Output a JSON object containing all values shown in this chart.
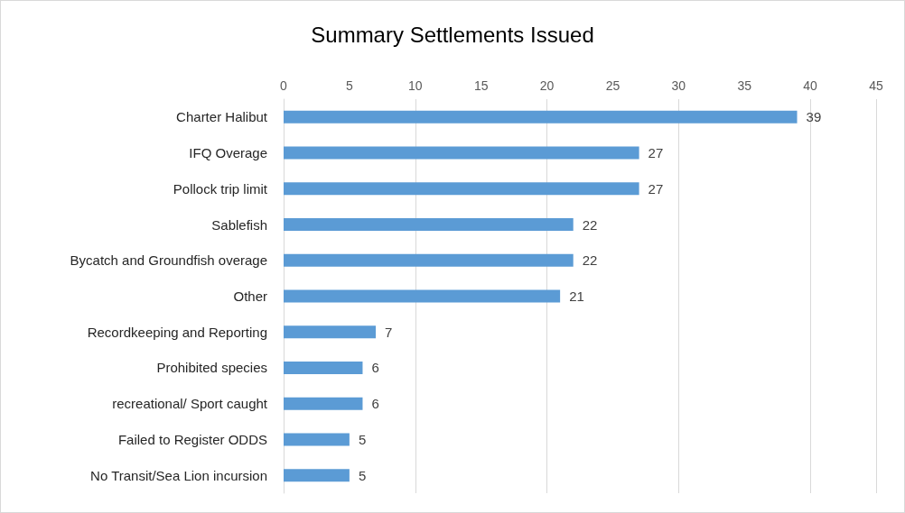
{
  "chart_data": {
    "type": "bar",
    "orientation": "horizontal",
    "title": "Summary Settlements Issued",
    "categories": [
      "Charter Halibut",
      "IFQ Overage",
      "Pollock trip limit",
      "Sablefish",
      "Bycatch and Groundfish overage",
      "Other",
      "Recordkeeping and Reporting",
      "Prohibited species",
      "recreational/ Sport caught",
      "Failed to Register ODDS",
      "No Transit/Sea Lion incursion"
    ],
    "values": [
      39,
      27,
      27,
      22,
      22,
      21,
      7,
      6,
      6,
      5,
      5
    ],
    "color": "#5b9bd5",
    "xlim": [
      0,
      45
    ],
    "xticks": [
      0,
      5,
      10,
      15,
      20,
      25,
      30,
      35,
      40,
      45
    ],
    "grid": "x",
    "data_labels": true
  }
}
